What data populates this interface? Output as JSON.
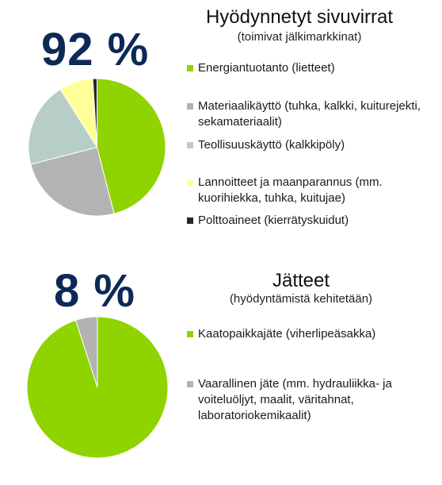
{
  "charts": [
    {
      "big_value": "92 %",
      "title": "Hyödynnetyt sivuvirrat",
      "subtitle": "(toimivat jälkimarkkinat)"
    },
    {
      "big_value": "8 %",
      "title": "Jätteet",
      "subtitle": "(hyödyntämistä kehitetään)"
    }
  ],
  "chart_data": [
    {
      "type": "pie",
      "title": "Hyödynnetyt sivuvirrat",
      "labels": [
        "Energiantuotanto (lietteet)",
        "Materiaalikäyttö (tuhka, kalkki, kuiturejekti, sekamateriaalit)",
        "Teollisuuskäyttö (kalkkipöly)",
        "Lannoitteet ja maanparannus (mm. kuorihiekka, tuhka, kuitujae)",
        "Polttoaineet (kierrätyskuidut)"
      ],
      "values": [
        46,
        25,
        20,
        8,
        1
      ],
      "colors": [
        "#8fd400",
        "#b3b3b3",
        "#b7cdc8",
        "#ffff99",
        "#262626"
      ],
      "legend_position": "right"
    },
    {
      "type": "pie",
      "title": "Jätteet",
      "labels": [
        "Kaatopaikkajäte (viherlipeäsakka)",
        "Vaarallinen jäte (mm. hydrauliikka- ja voiteluöljyt, maalit, väritahnat, laboratoriokemikaalit)"
      ],
      "values": [
        95,
        5
      ],
      "colors": [
        "#8fd400",
        "#b3b3b3"
      ],
      "legend_position": "right"
    }
  ]
}
